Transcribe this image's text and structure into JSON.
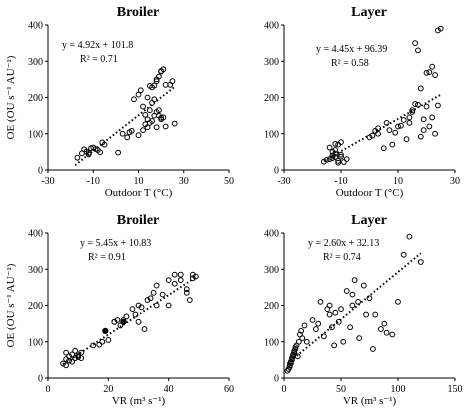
{
  "chart_data": [
    {
      "type": "scatter",
      "title": "Broiler",
      "xlabel": "Outdoor T (°C)",
      "ylabel": "OE (OU s⁻¹ AU⁻¹)",
      "xlim": [
        -30,
        50
      ],
      "ylim": [
        0,
        400
      ],
      "xticks": [
        -30,
        -10,
        10,
        30,
        50
      ],
      "yticks": [
        0,
        100,
        200,
        300,
        400
      ],
      "equation": "y = 4.92x + 101.8",
      "r2": "R² = 0.71",
      "trendline": {
        "slope": 4.92,
        "intercept": 101.8,
        "x_range": [
          -18,
          26
        ]
      },
      "x": [
        -17,
        -15,
        -14,
        -13,
        -12,
        -11,
        -10,
        -9,
        -8,
        -12,
        -7,
        -5,
        -6,
        1,
        3,
        5,
        6,
        7,
        8,
        10,
        11,
        12,
        13,
        14,
        15,
        16,
        17,
        18,
        19,
        20,
        21,
        15,
        16,
        14,
        17,
        18,
        19,
        20,
        21,
        22,
        24,
        25,
        26,
        18,
        20,
        22,
        13,
        15,
        17,
        19,
        10,
        12,
        14,
        16,
        18,
        20
      ],
      "y": [
        34,
        46,
        57,
        51,
        43,
        60,
        62,
        58,
        55,
        47,
        49,
        70,
        76,
        48,
        100,
        90,
        104,
        108,
        195,
        208,
        220,
        175,
        152,
        140,
        165,
        185,
        233,
        245,
        258,
        273,
        278,
        232,
        228,
        200,
        195,
        160,
        150,
        140,
        145,
        120,
        235,
        245,
        128,
        250,
        272,
        235,
        126,
        130,
        150,
        165,
        96,
        110,
        118,
        135,
        118,
        144
      ]
    },
    {
      "type": "scatter",
      "title": "Layer",
      "xlabel": "Outdoor T (°C)",
      "ylabel": "",
      "xlim": [
        -30,
        30
      ],
      "ylim": [
        0,
        400
      ],
      "xticks": [
        -30,
        -10,
        10,
        30
      ],
      "yticks": [
        0,
        100,
        200,
        300,
        400
      ],
      "equation": "y = 4.45x + 96.39",
      "r2": "R² = 0.58",
      "trendline": {
        "slope": 4.45,
        "intercept": 96.39,
        "x_range": [
          -16,
          25
        ]
      },
      "x": [
        -16,
        -15,
        -14,
        -13,
        -13,
        -12,
        -12,
        -11,
        -11,
        -10,
        -10,
        -9,
        -12,
        -14,
        -11,
        -8,
        -12,
        -10,
        -13,
        0,
        2,
        3,
        5,
        7,
        8,
        10,
        12,
        13,
        14,
        15,
        16,
        17,
        18,
        19,
        20,
        21,
        22,
        23,
        24,
        25,
        15,
        17,
        18,
        20,
        16,
        19,
        21,
        22,
        23,
        24,
        6,
        9,
        11,
        14,
        1,
        3
      ],
      "y": [
        23,
        28,
        30,
        33,
        50,
        45,
        36,
        20,
        25,
        37,
        42,
        22,
        55,
        62,
        70,
        30,
        72,
        77,
        40,
        90,
        108,
        100,
        60,
        110,
        70,
        120,
        138,
        85,
        145,
        160,
        182,
        180,
        225,
        140,
        268,
        270,
        285,
        262,
        385,
        390,
        165,
        330,
        92,
        175,
        350,
        110,
        120,
        145,
        100,
        178,
        130,
        103,
        122,
        130,
        95,
        115
      ]
    },
    {
      "type": "scatter",
      "title": "Broiler",
      "xlabel": "VR (m³ s⁻¹)",
      "ylabel": "OE (OU s⁻¹ AU⁻¹)",
      "xlim": [
        0,
        60
      ],
      "ylim": [
        0,
        400
      ],
      "xticks": [
        0,
        20,
        40,
        60
      ],
      "yticks": [
        0,
        100,
        200,
        300,
        400
      ],
      "equation": "y = 5.45x + 10.83",
      "r2": "R² = 0.91",
      "trendline": {
        "slope": 5.45,
        "intercept": 10.83,
        "x_range": [
          5,
          49
        ]
      },
      "x": [
        5,
        6,
        7,
        8,
        9,
        10,
        6,
        8,
        7,
        9,
        10,
        11,
        15,
        17,
        18,
        19,
        20,
        22,
        23,
        24,
        26,
        28,
        29,
        30,
        31,
        33,
        34,
        35,
        36,
        38,
        40,
        42,
        44,
        46,
        47,
        48,
        49,
        30,
        32,
        36,
        40,
        42,
        44,
        46,
        48,
        22,
        25,
        9,
        11,
        6
      ],
      "y": [
        40,
        52,
        60,
        45,
        55,
        58,
        70,
        65,
        48,
        75,
        62,
        55,
        90,
        92,
        100,
        130,
        105,
        155,
        160,
        145,
        170,
        190,
        175,
        200,
        195,
        215,
        220,
        235,
        255,
        230,
        270,
        285,
        270,
        245,
        215,
        275,
        280,
        155,
        135,
        200,
        200,
        260,
        285,
        235,
        285,
        155,
        160,
        55,
        70,
        35
      ],
      "filled_x": [
        19,
        25
      ],
      "filled_y": [
        130,
        155
      ]
    },
    {
      "type": "scatter",
      "title": "Layer",
      "xlabel": "VR (m³ s⁻¹)",
      "ylabel": "",
      "xlim": [
        0,
        150
      ],
      "ylim": [
        0,
        400
      ],
      "xticks": [
        0,
        50,
        100,
        150
      ],
      "yticks": [
        0,
        100,
        200,
        300,
        400
      ],
      "equation": "y = 2.60x + 32.13",
      "r2": "R² = 0.74",
      "trendline": {
        "slope": 2.6,
        "intercept": 32.13,
        "x_range": [
          3,
          120
        ]
      },
      "x": [
        3,
        4,
        5,
        5,
        6,
        6,
        7,
        7,
        8,
        8,
        9,
        9,
        10,
        10,
        11,
        12,
        13,
        14,
        15,
        16,
        18,
        20,
        25,
        30,
        35,
        40,
        40,
        42,
        45,
        48,
        50,
        55,
        60,
        62,
        65,
        70,
        75,
        80,
        85,
        90,
        95,
        100,
        105,
        110,
        120,
        28,
        32,
        38,
        44,
        52,
        58,
        66,
        72,
        78,
        88,
        60
      ],
      "y": [
        20,
        25,
        30,
        35,
        40,
        45,
        50,
        55,
        60,
        65,
        70,
        75,
        80,
        85,
        90,
        60,
        100,
        120,
        130,
        110,
        145,
        100,
        160,
        150,
        115,
        175,
        200,
        140,
        180,
        155,
        190,
        240,
        230,
        270,
        210,
        255,
        220,
        175,
        135,
        125,
        120,
        210,
        340,
        390,
        320,
        135,
        210,
        190,
        90,
        100,
        140,
        110,
        175,
        80,
        150,
        200
      ]
    }
  ]
}
